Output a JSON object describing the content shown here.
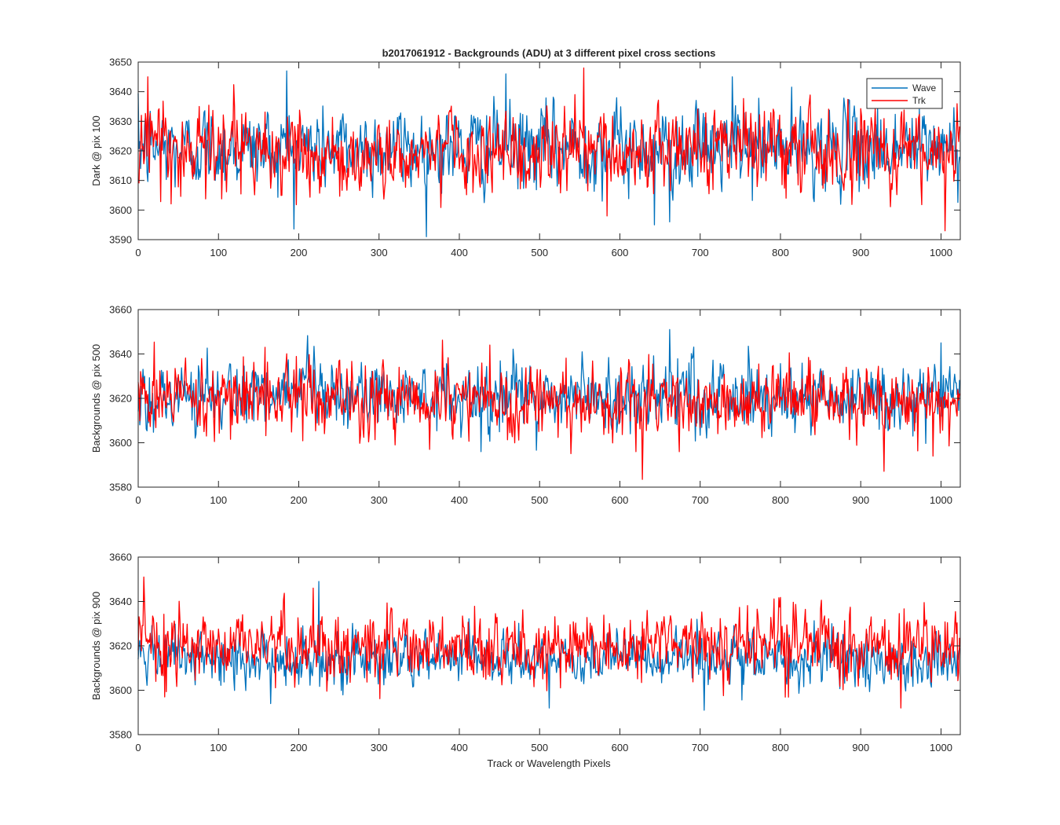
{
  "figure": {
    "title": "b2017061912 - Backgrounds (ADU) at 3 different pixel cross sections",
    "xlabel": "Track or Wavelength Pixels"
  },
  "legend": {
    "placement": "top-right",
    "entries": [
      {
        "label": "Wave",
        "color": "#0072BD"
      },
      {
        "label": "Trk",
        "color": "#FF0000"
      }
    ]
  },
  "chart_data": [
    {
      "type": "line",
      "ylabel": "Dark @ pix 100",
      "xlim": [
        0,
        1024
      ],
      "ylim": [
        3590,
        3650
      ],
      "xticks": [
        0,
        100,
        200,
        300,
        400,
        500,
        600,
        700,
        800,
        900,
        1000
      ],
      "yticks": [
        3590,
        3600,
        3610,
        3620,
        3630,
        3640,
        3650
      ],
      "grid": false,
      "series": [
        {
          "name": "Wave",
          "color": "#0072BD",
          "npoints": 1024,
          "x_start": 0,
          "x_step": 1,
          "mean": 3621,
          "std": 7,
          "notable_points": [
            [
              185,
              3647
            ],
            [
              458,
              3646
            ],
            [
              740,
              3645
            ],
            [
              643,
              3595
            ],
            [
              662,
              3596
            ]
          ]
        },
        {
          "name": "Trk",
          "color": "#FF0000",
          "npoints": 1024,
          "x_start": 0,
          "x_step": 1,
          "mean": 3620,
          "std": 7,
          "notable_points": [
            [
              12,
              3645
            ],
            [
              555,
              3648
            ],
            [
              1005,
              3593
            ],
            [
              584,
              3598
            ]
          ]
        }
      ]
    },
    {
      "type": "line",
      "ylabel": "Backgrounds @ pix 500",
      "xlim": [
        0,
        1024
      ],
      "ylim": [
        3580,
        3660
      ],
      "xticks": [
        0,
        100,
        200,
        300,
        400,
        500,
        600,
        700,
        800,
        900,
        1000
      ],
      "yticks": [
        3580,
        3600,
        3620,
        3640,
        3660
      ],
      "grid": false,
      "series": [
        {
          "name": "Wave",
          "color": "#0072BD",
          "npoints": 1024,
          "x_start": 0,
          "x_step": 1,
          "mean": 3621,
          "std": 8,
          "notable_points": [
            [
              662,
              3651
            ],
            [
              1000,
              3645
            ],
            [
              427,
              3596
            ]
          ]
        },
        {
          "name": "Trk",
          "color": "#FF0000",
          "npoints": 1024,
          "x_start": 0,
          "x_step": 1,
          "mean": 3619,
          "std": 8,
          "notable_points": [
            [
              438,
              3644
            ],
            [
              158,
              3643
            ],
            [
              363,
              3597
            ],
            [
              620,
              3596
            ],
            [
              990,
              3594
            ]
          ]
        }
      ]
    },
    {
      "type": "line",
      "ylabel": "Backgrounds @ pix 900",
      "xlim": [
        0,
        1024
      ],
      "ylim": [
        3580,
        3660
      ],
      "xticks": [
        0,
        100,
        200,
        300,
        400,
        500,
        600,
        700,
        800,
        900,
        1000
      ],
      "yticks": [
        3580,
        3600,
        3620,
        3640,
        3660
      ],
      "grid": false,
      "series": [
        {
          "name": "Wave",
          "color": "#0072BD",
          "npoints": 1024,
          "x_start": 0,
          "x_step": 1,
          "mean": 3614,
          "std": 6,
          "notable_points": [
            [
              225,
              3649
            ],
            [
              705,
              3591
            ],
            [
              512,
              3592
            ],
            [
              165,
              3594
            ]
          ]
        },
        {
          "name": "Trk",
          "color": "#FF0000",
          "npoints": 1024,
          "x_start": 0,
          "x_step": 1,
          "mean": 3620,
          "std": 8,
          "notable_points": [
            [
              7,
              3651
            ],
            [
              218,
              3646
            ],
            [
              33,
              3597
            ],
            [
              950,
              3592
            ]
          ]
        }
      ]
    }
  ]
}
